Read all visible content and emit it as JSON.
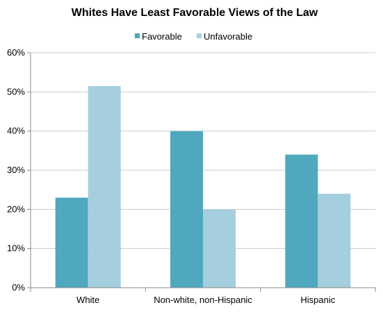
{
  "chart_data": {
    "type": "bar",
    "title": "Whites Have Least Favorable Views of the Law",
    "categories": [
      "White",
      "Non-white, non-Hispanic",
      "Hispanic"
    ],
    "series": [
      {
        "name": "Favorable",
        "values": [
          23,
          40,
          34
        ],
        "color": "#4fa8bd"
      },
      {
        "name": "Unfavorable",
        "values": [
          51.5,
          20,
          24
        ],
        "color": "#a5cfde"
      }
    ],
    "ylim": [
      0,
      60
    ],
    "yticks": [
      0,
      10,
      20,
      30,
      40,
      50,
      60
    ],
    "ytick_labels": [
      "0%",
      "10%",
      "20%",
      "30%",
      "40%",
      "50%",
      "60%"
    ],
    "xlabel": "",
    "ylabel": "",
    "grid": true,
    "legend_position": "top-center"
  }
}
